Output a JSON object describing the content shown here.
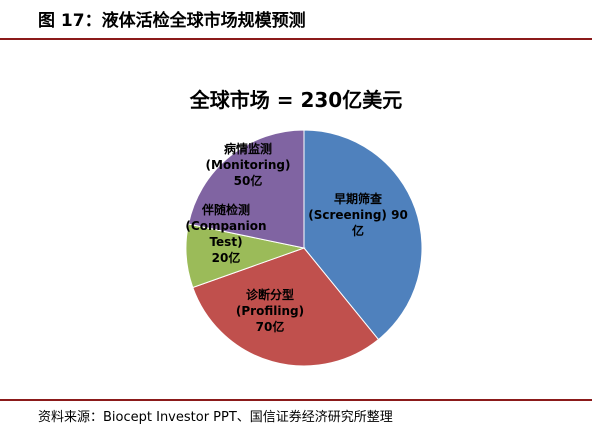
{
  "figure": {
    "title": "图 17：液体活检全球市场规模预测",
    "source": "资料来源：Biocept Investor PPT、国信证券经济研究所整理"
  },
  "chart_data": {
    "type": "pie",
    "title": "全球市场 = 230亿美元",
    "slices": [
      {
        "label_lines": [
          "早期筛查",
          "(Screening) 90",
          "亿"
        ],
        "value": 90,
        "color": "#4f81bd"
      },
      {
        "label_lines": [
          "诊断分型",
          "(Profiling)",
          "70亿"
        ],
        "value": 70,
        "color": "#c0504d"
      },
      {
        "label_lines": [
          "伴随检测",
          "(Companion",
          "Test)",
          "20亿"
        ],
        "value": 20,
        "color": "#9bbb59"
      },
      {
        "label_lines": [
          "病情监测",
          "(Monitoring)",
          "50亿"
        ],
        "value": 50,
        "color": "#8064a2"
      }
    ],
    "legend": "none"
  }
}
